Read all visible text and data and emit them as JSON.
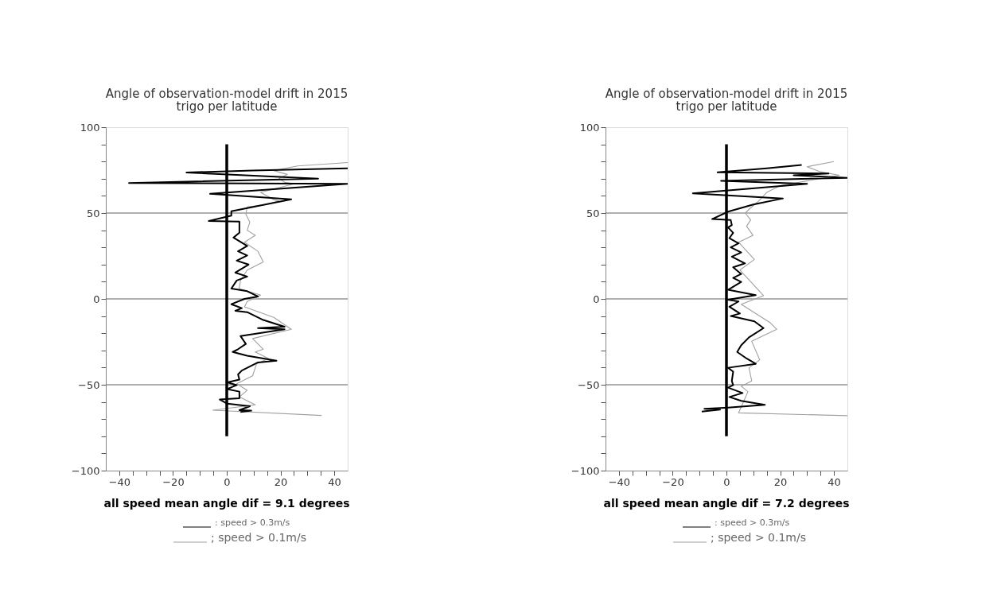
{
  "chart_data": [
    {
      "type": "line",
      "title": "Angle of observation-model drift in 2015",
      "subtitle": "trigo per latitude",
      "xlim": [
        -45,
        45
      ],
      "ylim": [
        -100,
        100
      ],
      "xticks": [
        -40,
        {
          "value": -35,
          "label": null
        },
        {
          "value": -30,
          "label": null
        },
        {
          "value": -25,
          "label": null
        },
        -20,
        {
          "value": -15,
          "label": null
        },
        {
          "value": -10,
          "label": null
        },
        {
          "value": -5,
          "label": null
        },
        0,
        {
          "value": 5,
          "label": null
        },
        {
          "value": 10,
          "label": null
        },
        {
          "value": 15,
          "label": null
        },
        20,
        {
          "value": 25,
          "label": null
        },
        {
          "value": 30,
          "label": null
        },
        {
          "value": 35,
          "label": null
        },
        40
      ],
      "yticks": [
        -100,
        {
          "value": -90,
          "label": null
        },
        {
          "value": -80,
          "label": null
        },
        {
          "value": -70,
          "label": null
        },
        {
          "value": -60,
          "label": null
        },
        -50,
        {
          "value": -40,
          "label": null
        },
        {
          "value": -30,
          "label": null
        },
        {
          "value": -20,
          "label": null
        },
        {
          "value": -10,
          "label": null
        },
        0,
        {
          "value": 10,
          "label": null
        },
        {
          "value": 20,
          "label": null
        },
        {
          "value": 30,
          "label": null
        },
        {
          "value": 40,
          "label": null
        },
        50,
        {
          "value": 60,
          "label": null
        },
        {
          "value": 70,
          "label": null
        },
        {
          "value": 80,
          "label": null
        },
        {
          "value": 90,
          "label": null
        },
        100
      ],
      "ref_lines": [
        {
          "axis": "y",
          "value": 50,
          "color": "#606060"
        },
        {
          "axis": "y",
          "value": 0,
          "color": "#606060"
        },
        {
          "axis": "y",
          "value": -50,
          "color": "#606060"
        }
      ],
      "legend": "bottom",
      "annotations": [
        "all speed mean angle dif = 9.1 degrees"
      ],
      "series": [
        {
          "name": "; speed > 0.1m/s",
          "color": "#a0a0a0",
          "x": [
            45,
            26.4,
            17.5,
            22.5,
            19.5,
            21.5,
            25,
            12.6,
            17.5,
            19.5,
            13.6,
            7.6,
            7.1,
            8.6,
            7.6,
            10.6,
            6.6,
            11.6,
            13.6,
            7.6,
            5.1,
            4.6,
            12.6,
            7.6,
            6.6,
            17.5,
            24,
            9.6,
            13.6,
            10.6,
            15.5,
            11.1,
            9.6,
            3.7,
            7.6,
            4.7,
            10.6,
            -5.2,
            35.3
          ],
          "values": [
            79.4,
            77.4,
            74.7,
            72.5,
            70.2,
            67.9,
            67,
            62,
            57.8,
            57,
            54.7,
            53.6,
            49.3,
            44.7,
            40,
            37,
            33,
            27.7,
            21.5,
            16.8,
            10.7,
            6,
            2.2,
            -1.5,
            -4.6,
            -10.8,
            -17.7,
            -23.1,
            -29.3,
            -30.9,
            -34.7,
            -37.8,
            -44.8,
            -49.4,
            -53.2,
            -57.1,
            -61.7,
            -64.8,
            -67.9
          ]
        },
        {
          "name": ": speed > 0.3m/s",
          "color": "#000000",
          "x": [
            45,
            9.6,
            -15,
            34,
            -36.4,
            45,
            -6.2,
            24,
            1.7,
            1.7,
            -6.7,
            4.7,
            4.7,
            2.5,
            7.6,
            4.2,
            7.6,
            3.7,
            8.1,
            3.2,
            7.6,
            3.7,
            1.7,
            7.6,
            11.6,
            6.6,
            1.7,
            5.6,
            3.2,
            7.6,
            13.6,
            21.5,
            11.6,
            21.5,
            5.1,
            7.1,
            4.2,
            2.2,
            7.6,
            18.5,
            11.6,
            5.6,
            4.2,
            4.7,
            0.2,
            3.7,
            0.2,
            4.7,
            4.7,
            -2.6,
            0.2,
            8.6,
            4.7,
            9.1,
            5.1
          ],
          "values": [
            76,
            74.8,
            73.6,
            70,
            67.5,
            67,
            61.2,
            58,
            51,
            48.5,
            45.4,
            45,
            38.5,
            35.7,
            30.8,
            27.7,
            25.3,
            22.3,
            20,
            15.3,
            13,
            10.7,
            6,
            4.5,
            1.4,
            0,
            -3.1,
            -5.4,
            -6.9,
            -7.7,
            -12.3,
            -16.2,
            -17,
            -17.7,
            -21.6,
            -26.2,
            -29.3,
            -30.9,
            -33.1,
            -36,
            -37,
            -41.7,
            -44,
            -47,
            -48.6,
            -50.2,
            -52.5,
            -54,
            -57.9,
            -58.6,
            -61,
            -62.5,
            -64.8,
            -65.1,
            -65.9
          ]
        },
        {
          "color": "#000000",
          "x": [
            0,
            0
          ],
          "values": [
            -80,
            90
          ]
        }
      ]
    },
    {
      "type": "line",
      "title": "Angle of observation-model drift in 2015",
      "subtitle": "trigo per latitude",
      "xlim": [
        -45,
        45
      ],
      "ylim": [
        -100,
        100
      ],
      "xticks": [
        -40,
        {
          "value": -35,
          "label": null
        },
        {
          "value": -30,
          "label": null
        },
        {
          "value": -25,
          "label": null
        },
        -20,
        {
          "value": -15,
          "label": null
        },
        {
          "value": -10,
          "label": null
        },
        {
          "value": -5,
          "label": null
        },
        0,
        {
          "value": 5,
          "label": null
        },
        {
          "value": 10,
          "label": null
        },
        {
          "value": 15,
          "label": null
        },
        20,
        {
          "value": 25,
          "label": null
        },
        {
          "value": 30,
          "label": null
        },
        {
          "value": 35,
          "label": null
        },
        40
      ],
      "yticks": [
        -100,
        {
          "value": -90,
          "label": null
        },
        {
          "value": -80,
          "label": null
        },
        {
          "value": -70,
          "label": null
        },
        {
          "value": -60,
          "label": null
        },
        -50,
        {
          "value": -40,
          "label": null
        },
        {
          "value": -30,
          "label": null
        },
        {
          "value": -20,
          "label": null
        },
        {
          "value": -10,
          "label": null
        },
        0,
        {
          "value": 10,
          "label": null
        },
        {
          "value": 20,
          "label": null
        },
        {
          "value": 30,
          "label": null
        },
        {
          "value": 40,
          "label": null
        },
        50,
        {
          "value": 60,
          "label": null
        },
        {
          "value": 70,
          "label": null
        },
        {
          "value": 80,
          "label": null
        },
        {
          "value": 90,
          "label": null
        },
        100
      ],
      "ref_lines": [
        {
          "axis": "y",
          "value": 50,
          "color": "#606060"
        },
        {
          "axis": "y",
          "value": 0,
          "color": "#606060"
        },
        {
          "axis": "y",
          "value": -50,
          "color": "#606060"
        }
      ],
      "legend": "bottom",
      "annotations": [
        "all speed mean angle dif = 7.2 degrees"
      ],
      "series": [
        {
          "name": "; speed > 0.1m/s",
          "color": "#a0a0a0",
          "x": [
            40,
            30,
            35,
            42,
            20,
            15,
            12,
            9,
            7,
            9,
            7.5,
            9.9,
            4.5,
            10.4,
            5,
            13.8,
            5.5,
            16.3,
            18.7,
            9.4,
            12.4,
            8.4,
            9.4,
            5.5,
            8,
            4.5,
            45
          ],
          "values": [
            80,
            77,
            74,
            72,
            66,
            62,
            57,
            53,
            50,
            46,
            42.3,
            37,
            33,
            23,
            16.8,
            1.9,
            -3.1,
            -13.9,
            -17.7,
            -24.7,
            -35.5,
            -40.1,
            -47.8,
            -50.9,
            -54,
            -66.4,
            -68
          ]
        },
        {
          "name": ": speed > 0.3m/s",
          "color": "#000000",
          "x": [
            28,
            15,
            -3.3,
            38,
            25,
            45,
            -2,
            30,
            -12.5,
            21,
            10,
            0.6,
            -5.3,
            1.6,
            2,
            0.6,
            2.5,
            1.1,
            4.5,
            1.6,
            5.5,
            2,
            6.9,
            2.5,
            5.5,
            2.5,
            5.5,
            0.6,
            10.9,
            0.6,
            4.5,
            1.1,
            5,
            1.6,
            10.4,
            13.8,
            8.4,
            5.5,
            4,
            7.5,
            10.9,
            0.6,
            2.5,
            2,
            2.5,
            0.6,
            6,
            1.1,
            5.5,
            14.3,
            0.6,
            -8.2,
            -2.4,
            -9.2
          ],
          "values": [
            78,
            76,
            73.7,
            73,
            72,
            70.5,
            68.8,
            67,
            61.5,
            58.5,
            55,
            50.8,
            46.5,
            45.9,
            43,
            41.6,
            38.5,
            35.4,
            32.3,
            30,
            27,
            24.6,
            20.7,
            18.4,
            14.5,
            12.2,
            9.9,
            5.3,
            2.2,
            -0.5,
            -1.5,
            -4.6,
            -8.5,
            -10,
            -13.1,
            -17,
            -22.4,
            -27,
            -30.9,
            -34.7,
            -37.8,
            -40.1,
            -42.4,
            -47.8,
            -50.2,
            -51.7,
            -54.8,
            -57.1,
            -59.4,
            -61.7,
            -63.3,
            -64,
            -64.5,
            -65.6
          ]
        },
        {
          "color": "#000000",
          "x": [
            0,
            0
          ],
          "values": [
            -80,
            90
          ]
        }
      ]
    }
  ]
}
